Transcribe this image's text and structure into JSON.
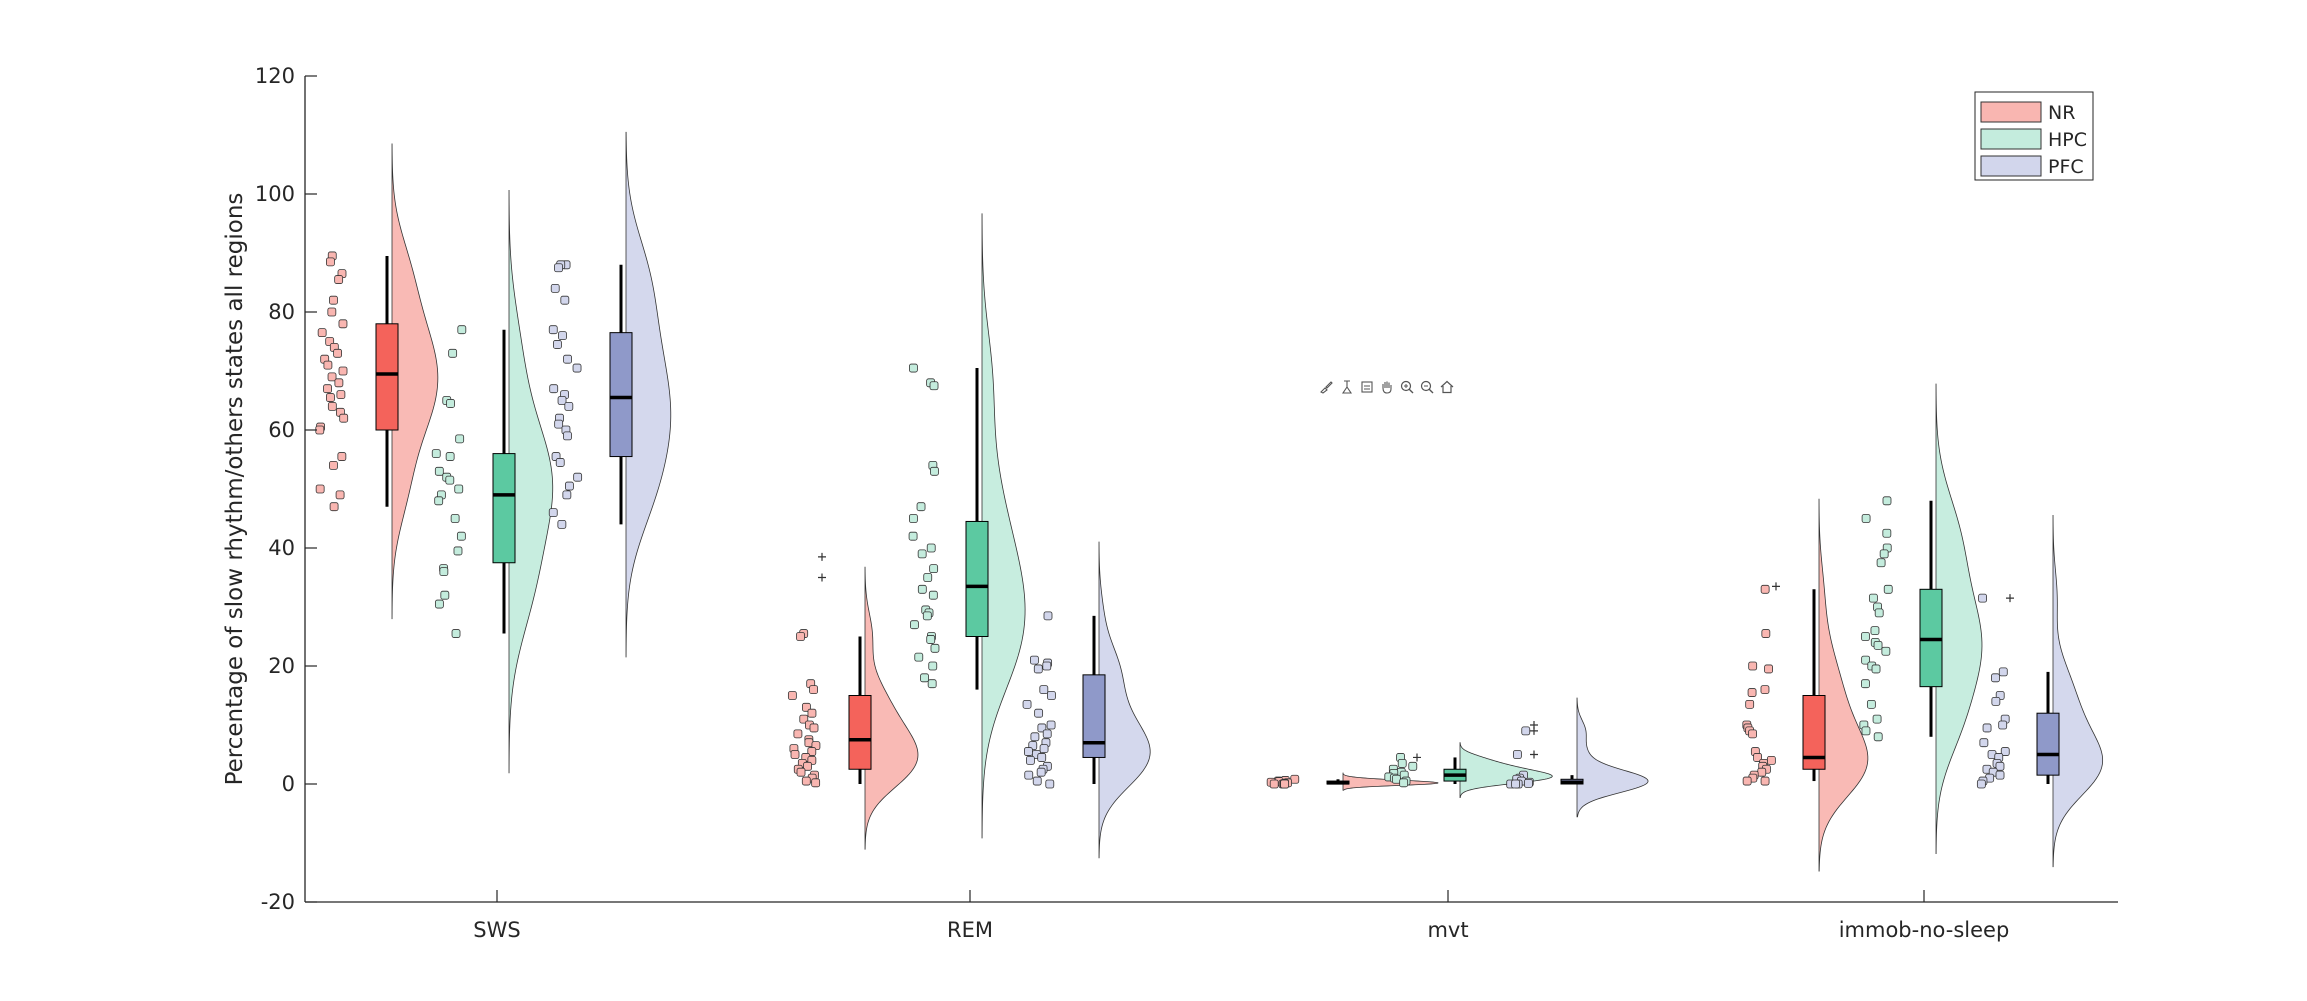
{
  "chart_data": {
    "type": "raincloud",
    "ylabel": "Percentage of slow rhythm/others states all regions",
    "xlabel": "",
    "ylim": [
      -20,
      120
    ],
    "yticks": [
      -20,
      0,
      20,
      40,
      60,
      80,
      100,
      120
    ],
    "grid": false,
    "legend_position": "top-right",
    "categories": [
      "SWS",
      "REM",
      "mvt",
      "immob-no-sleep"
    ],
    "series": [
      {
        "name": "NR",
        "color": "#f4635b",
        "fill": "#f9b6b1",
        "boxes": [
          {
            "min": 47,
            "q1": 60,
            "median": 69.5,
            "q3": 78,
            "max": 89.5,
            "outliers": []
          },
          {
            "min": 0,
            "q1": 2.5,
            "median": 7.5,
            "q3": 15,
            "max": 25,
            "outliers": [
              35,
              38.5
            ]
          },
          {
            "min": 0,
            "q1": 0,
            "median": 0.2,
            "q3": 0.5,
            "max": 0.8,
            "outliers": []
          },
          {
            "min": 0.5,
            "q1": 2.5,
            "median": 4.5,
            "q3": 15,
            "max": 33,
            "outliers": [
              33.5
            ]
          }
        ],
        "points": [
          [
            89.5,
            88.5,
            86.5,
            85.5,
            82,
            80,
            78,
            76.5,
            75,
            74,
            73,
            72,
            71,
            70,
            69,
            68,
            67,
            66,
            65.5,
            64,
            63,
            62,
            60.5,
            60,
            55.5,
            54,
            50,
            49,
            47
          ],
          [
            25.5,
            25,
            17,
            16,
            15,
            13,
            12,
            11,
            10,
            9.5,
            8.5,
            7.5,
            7,
            6.5,
            6,
            5.5,
            5,
            4.5,
            4,
            3.5,
            3,
            2.5,
            2,
            1.5,
            1,
            0.5,
            0.2
          ],
          [
            0.8,
            0.6,
            0.5,
            0.4,
            0.3,
            0.2,
            0.1,
            0,
            0,
            0,
            0,
            0
          ],
          [
            33,
            25.5,
            20,
            19.5,
            16,
            15.5,
            13.5,
            10,
            9.5,
            9,
            8.5,
            5.5,
            4.5,
            4,
            3.5,
            3,
            2.5,
            2,
            1.5,
            1,
            0.5,
            0.5
          ]
        ]
      },
      {
        "name": "HPC",
        "color": "#5cc9a1",
        "fill": "#c4ecdd",
        "boxes": [
          {
            "min": 25.5,
            "q1": 37.5,
            "median": 49,
            "q3": 56,
            "max": 77,
            "outliers": []
          },
          {
            "min": 16,
            "q1": 25,
            "median": 33.5,
            "q3": 44.5,
            "max": 70.5,
            "outliers": []
          },
          {
            "min": 0,
            "q1": 0.5,
            "median": 1.5,
            "q3": 2.5,
            "max": 4.5,
            "outliers": [
              4.5
            ]
          },
          {
            "min": 8,
            "q1": 16.5,
            "median": 24.5,
            "q3": 33,
            "max": 48,
            "outliers": []
          }
        ],
        "points": [
          [
            77,
            73,
            65,
            64.5,
            58.5,
            56,
            55.5,
            53,
            52,
            51.5,
            50,
            49,
            48,
            45,
            42,
            39.5,
            36.5,
            36,
            32,
            30.5,
            25.5
          ],
          [
            70.5,
            68,
            67.5,
            54,
            53,
            47,
            45,
            42,
            40,
            39,
            36.5,
            35,
            33,
            32,
            29.5,
            29,
            28.5,
            27,
            25,
            24.5,
            23,
            21.5,
            20,
            18,
            17
          ],
          [
            4.5,
            3.5,
            3,
            2.5,
            2,
            1.8,
            1.5,
            1.2,
            1,
            0.8,
            0.5,
            0.2
          ],
          [
            48,
            45,
            42.5,
            40,
            39,
            37.5,
            33,
            31.5,
            30,
            29,
            26,
            25,
            24,
            23.5,
            22.5,
            21,
            20,
            19.5,
            17,
            13.5,
            11,
            10,
            9,
            8
          ]
        ]
      },
      {
        "name": "PFC",
        "color": "#8f99c9",
        "fill": "#d2d6ec",
        "boxes": [
          {
            "min": 44,
            "q1": 55.5,
            "median": 65.5,
            "q3": 76.5,
            "max": 88,
            "outliers": []
          },
          {
            "min": 0,
            "q1": 4.5,
            "median": 7,
            "q3": 18.5,
            "max": 28.5,
            "outliers": []
          },
          {
            "min": 0,
            "q1": 0,
            "median": 0.3,
            "q3": 0.8,
            "max": 1.5,
            "outliers": [
              5,
              9,
              10
            ]
          },
          {
            "min": 0,
            "q1": 1.5,
            "median": 5,
            "q3": 12,
            "max": 19,
            "outliers": [
              31.5
            ]
          }
        ],
        "points": [
          [
            88,
            88,
            87.5,
            84,
            82,
            77,
            76,
            74.5,
            72,
            70.5,
            67,
            66,
            65,
            64,
            62,
            61,
            60,
            59,
            55.5,
            54.5,
            52,
            50.5,
            49,
            46,
            44
          ],
          [
            28.5,
            21,
            20.5,
            20,
            19.5,
            16,
            15,
            13.5,
            12,
            10,
            9.5,
            8.5,
            8,
            7,
            6.5,
            6,
            5.5,
            5,
            4.5,
            4,
            3,
            2.5,
            2,
            1.5,
            0.5,
            0
          ],
          [
            9,
            5,
            1.5,
            1,
            0.8,
            0.5,
            0.3,
            0.1,
            0,
            0,
            0
          ],
          [
            31.5,
            19,
            18,
            15,
            14,
            11,
            10,
            9.5,
            7,
            5.5,
            5,
            4.5,
            3.5,
            3,
            2.5,
            2,
            1.5,
            1,
            0.5,
            0
          ]
        ]
      }
    ]
  },
  "toolbar": {
    "icons": [
      "brush-icon",
      "datatip-icon",
      "rotate-icon",
      "pan-icon",
      "zoom-in-icon",
      "zoom-out-icon",
      "home-icon"
    ]
  }
}
